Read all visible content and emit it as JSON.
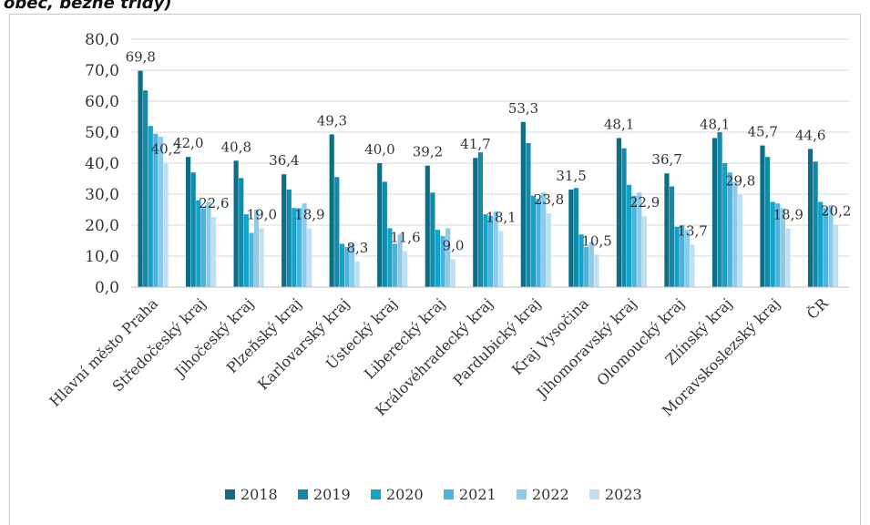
{
  "page": {
    "heading": "obec, bežné třídy)"
  },
  "chart_data": {
    "type": "bar",
    "categories": [
      "Hlavní město Praha",
      "Středočeský kraj",
      "Jihočeský kraj",
      "Plzeňský kraj",
      "Karlovarský kraj",
      "Ústecký kraj",
      "Liberecký kraj",
      "Královéhradecký kraj",
      "Pardubický kraj",
      "Kraj Vysočina",
      "Jihomoravský kraj",
      "Olomoucký kraj",
      "Zlínský kraj",
      "Moravskoslezský kraj",
      "ČR"
    ],
    "series": [
      {
        "name": "2018",
        "color": "#0b6e86",
        "values": [
          69.8,
          42.0,
          40.8,
          36.4,
          49.3,
          40.0,
          39.2,
          41.7,
          53.3,
          31.5,
          48.1,
          36.7,
          48.1,
          45.7,
          44.6
        ]
      },
      {
        "name": "2019",
        "color": "#138ba8",
        "values": [
          63.5,
          37.0,
          35.2,
          31.5,
          35.5,
          34.0,
          30.5,
          43.5,
          46.5,
          32.0,
          44.8,
          32.5,
          50.0,
          42.0,
          40.5
        ]
      },
      {
        "name": "2020",
        "color": "#12a3c9",
        "values": [
          52.0,
          28.0,
          23.5,
          25.5,
          14.0,
          19.0,
          18.5,
          23.5,
          29.5,
          17.0,
          33.0,
          19.5,
          40.0,
          27.5,
          27.5
        ]
      },
      {
        "name": "2021",
        "color": "#4bb3dc",
        "values": [
          49.5,
          25.5,
          17.5,
          25.5,
          13.0,
          14.0,
          16.5,
          23.0,
          28.5,
          13.0,
          29.5,
          20.0,
          37.0,
          27.0,
          25.5
        ]
      },
      {
        "name": "2022",
        "color": "#8ccbea",
        "values": [
          48.5,
          27.5,
          25.0,
          27.0,
          14.0,
          17.0,
          19.0,
          24.5,
          30.5,
          14.5,
          30.5,
          18.5,
          34.0,
          25.5,
          26.5
        ]
      },
      {
        "name": "2023",
        "color": "#bfe0f3",
        "values": [
          40.2,
          22.6,
          19.0,
          18.9,
          8.3,
          11.6,
          9.0,
          18.1,
          23.8,
          10.5,
          22.9,
          13.7,
          29.8,
          18.9,
          20.2
        ]
      }
    ],
    "data_labels": {
      "2018": [
        "69,8",
        "42,0",
        "40,8",
        "36,4",
        "49,3",
        "40,0",
        "39,2",
        "41,7",
        "53,3",
        "31,5",
        "48,1",
        "36,7",
        "48,1",
        "45,7",
        "44,6"
      ],
      "2023": [
        "40,2",
        "22,6",
        "19,0",
        "18,9",
        "8,3",
        "11,6",
        "9,0",
        "18,1",
        "23,8",
        "10,5",
        "22,9",
        "13,7",
        "29,8",
        "18,9",
        "20,2"
      ]
    },
    "y_ticks": [
      "0,0",
      "10,0",
      "20,0",
      "30,0",
      "40,0",
      "50,0",
      "60,0",
      "70,0",
      "80,0"
    ],
    "ylim": [
      0,
      80
    ],
    "grid": true,
    "legend_position": "bottom"
  }
}
